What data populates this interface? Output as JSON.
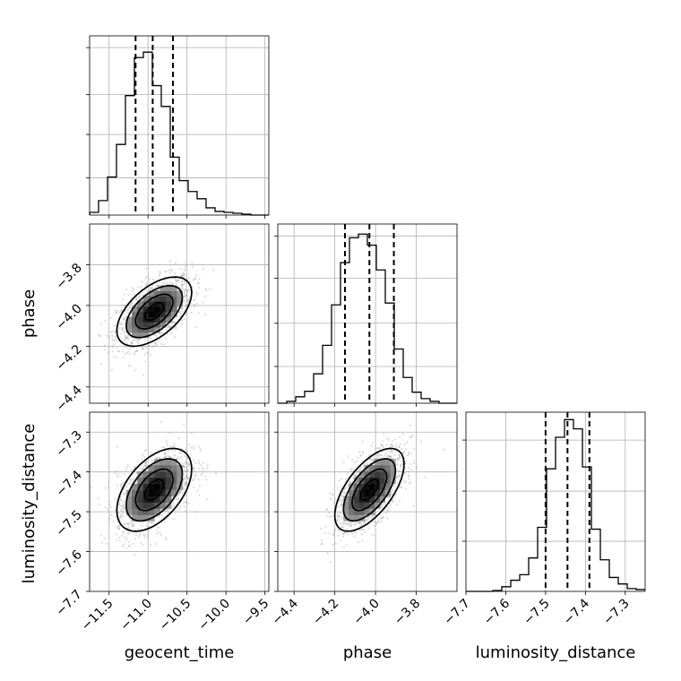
{
  "chart_data": {
    "type": "corner",
    "parameters": [
      "geocent_time",
      "phase",
      "luminosity_distance"
    ],
    "axis_labels": {
      "geocent_time": "geocent_time",
      "phase": "phase",
      "luminosity_distance": "luminosity_distance"
    },
    "ranges": {
      "geocent_time": [
        -11.75,
        -9.45
      ],
      "phase": [
        -4.48,
        -3.6
      ],
      "luminosity_distance": [
        -7.7,
        -7.25
      ]
    },
    "ticks": {
      "geocent_time": [
        "−11.5",
        "−11.0",
        "−10.5",
        "−10.0",
        "−9.5"
      ],
      "phase": [
        "−4.4",
        "−4.2",
        "−4.0",
        "−3.8"
      ],
      "luminosity_distance": [
        "−7.7",
        "−7.6",
        "−7.5",
        "−7.4",
        "−7.3"
      ]
    },
    "tick_values": {
      "geocent_time": [
        -11.5,
        -11.0,
        -10.5,
        -10.0,
        -9.5
      ],
      "phase": [
        -4.4,
        -4.2,
        -4.0,
        -3.8
      ],
      "luminosity_distance": [
        -7.7,
        -7.6,
        -7.5,
        -7.4,
        -7.3
      ]
    },
    "marginals": {
      "geocent_time": {
        "bin_edges": [
          -11.75,
          -11.635,
          -11.52,
          -11.405,
          -11.29,
          -11.175,
          -11.06,
          -10.945,
          -10.83,
          -10.715,
          -10.6,
          -10.485,
          -10.37,
          -10.255,
          -10.14,
          -10.025,
          -9.91,
          -9.795,
          -9.68,
          -9.565,
          -9.45
        ],
        "counts": [
          0.3,
          1.6,
          4.2,
          7.8,
          13.2,
          17.4,
          18.0,
          14.3,
          12.0,
          6.4,
          3.8,
          2.6,
          1.8,
          0.8,
          0.4,
          0.3,
          0.2,
          0.1,
          0.0,
          0.0
        ],
        "quantiles": [
          -11.16,
          -10.94,
          -10.68
        ],
        "ymax": 19.8,
        "grid_y": [
          4.1,
          8.9,
          13.3,
          18.5
        ]
      },
      "phase": {
        "bin_edges": [
          -4.48,
          -4.436,
          -4.392,
          -4.348,
          -4.304,
          -4.26,
          -4.216,
          -4.172,
          -4.128,
          -4.084,
          -4.04,
          -3.996,
          -3.952,
          -3.908,
          -3.864,
          -3.82,
          -3.776,
          -3.732,
          -3.688,
          -3.644,
          -3.6
        ],
        "counts": [
          0.0,
          0.2,
          0.7,
          1.3,
          3.2,
          6.3,
          10.7,
          15.3,
          18.0,
          18.4,
          17.2,
          14.5,
          10.9,
          5.9,
          2.8,
          1.2,
          0.5,
          0.2,
          0.0,
          0.0
        ],
        "quantiles": [
          -4.15,
          -4.03,
          -3.91
        ],
        "ymax": 19.5,
        "grid_y": [
          4.0,
          8.7,
          13.6,
          18.2
        ]
      },
      "luminosity_distance": {
        "bin_edges": [
          -7.7,
          -7.6775,
          -7.655,
          -7.6325,
          -7.61,
          -7.5875,
          -7.565,
          -7.5425,
          -7.52,
          -7.4975,
          -7.475,
          -7.4525,
          -7.43,
          -7.4075,
          -7.385,
          -7.3625,
          -7.34,
          -7.3175,
          -7.295,
          -7.2725,
          -7.25
        ],
        "counts": [
          0.0,
          0.0,
          0.0,
          0.1,
          0.5,
          1.2,
          1.8,
          3.6,
          6.9,
          13.2,
          16.6,
          18.5,
          17.5,
          13.4,
          6.7,
          3.4,
          1.5,
          0.8,
          0.3,
          0.2
        ],
        "quantiles": [
          -7.5,
          -7.445,
          -7.39
        ],
        "ymax": 19.3,
        "grid_y": [
          5.4,
          10.8,
          16.3
        ]
      }
    },
    "pairs": [
      {
        "x": "geocent_time",
        "y": "phase",
        "center": [
          -10.92,
          -4.03
        ],
        "sigma": [
          0.24,
          0.085
        ],
        "rho": 0.55
      },
      {
        "x": "geocent_time",
        "y": "luminosity_distance",
        "center": [
          -10.92,
          -7.445
        ],
        "sigma": [
          0.24,
          0.052
        ],
        "rho": 0.5
      },
      {
        "x": "phase",
        "y": "luminosity_distance",
        "center": [
          -4.03,
          -7.445
        ],
        "sigma": [
          0.085,
          0.052
        ],
        "rho": 0.62
      }
    ],
    "contour_levels_sigma": [
      0.5,
      1.0,
      1.5,
      2.0
    ],
    "grid": true,
    "colors": {
      "ink": "#000000",
      "grid": "#b0b0b0",
      "points": "#9a9a9a"
    }
  }
}
